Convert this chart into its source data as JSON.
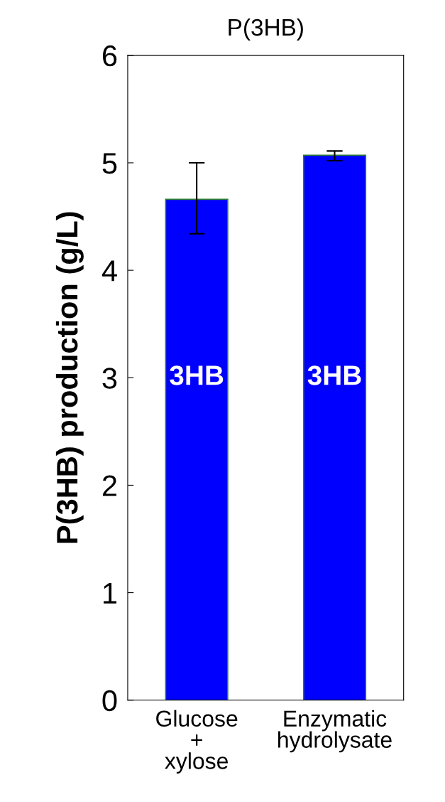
{
  "chart_data": {
    "type": "bar",
    "title": "P(3HB)",
    "ylabel": "P(3HB) production (g/L)",
    "categories": [
      "Glucose\n+\nxylose",
      "Enzymatic\nhydrolysate"
    ],
    "values": [
      4.66,
      5.07
    ],
    "errors": [
      [
        4.34,
        5.0
      ],
      [
        5.02,
        5.11
      ]
    ],
    "color": "#0000ff",
    "ylim": [
      0,
      6
    ],
    "yticks": [
      0,
      1,
      2,
      3,
      4,
      5,
      6
    ],
    "annotations": [
      "3HB",
      "3HB"
    ],
    "grid": false,
    "legend": false
  }
}
